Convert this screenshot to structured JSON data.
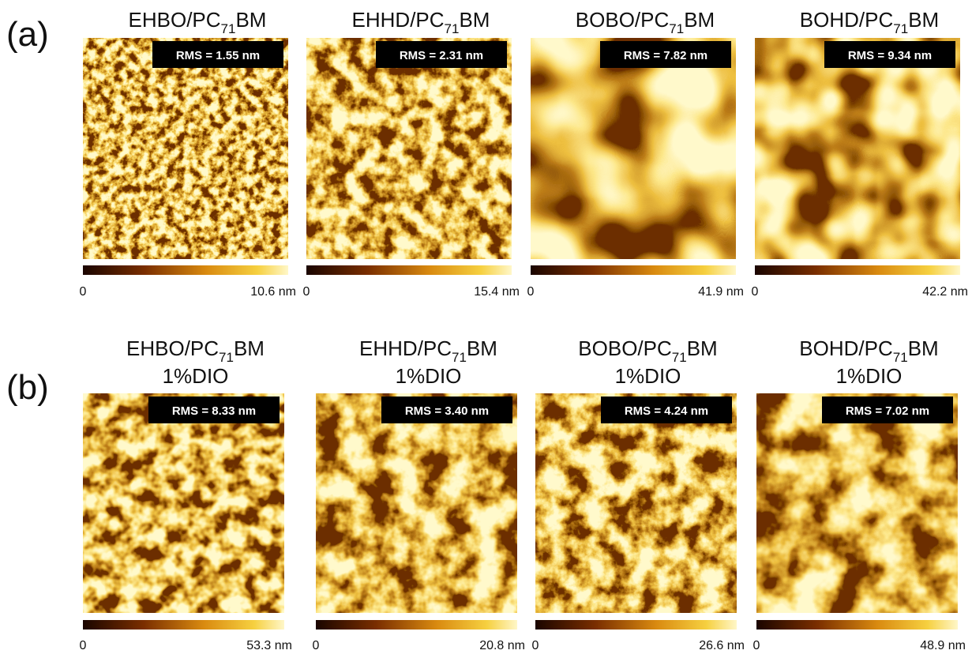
{
  "rows": [
    {
      "label": "(a)",
      "panels": [
        {
          "title": {
            "main": "EHBO/PC",
            "sub": "71",
            "end": "BM"
          },
          "rms": "RMS = 1.55 nm",
          "scale_min": "0",
          "scale_max": "10.6 nm"
        },
        {
          "title": {
            "main": "EHHD/PC",
            "sub": "71",
            "end": "BM"
          },
          "rms": "RMS = 2.31 nm",
          "scale_min": "0",
          "scale_max": "15.4 nm"
        },
        {
          "title": {
            "main": "BOBO/PC",
            "sub": "71",
            "end": "BM"
          },
          "rms": "RMS = 7.82 nm",
          "scale_min": "0",
          "scale_max": "41.9 nm"
        },
        {
          "title": {
            "main": "BOHD/PC",
            "sub": "71",
            "end": "BM"
          },
          "rms": "RMS = 9.34 nm",
          "scale_min": "0",
          "scale_max": "42.2 nm"
        }
      ]
    },
    {
      "label": "(b)",
      "panels": [
        {
          "title": {
            "main": "EHBO/PC",
            "sub": "71",
            "end": "BM",
            "additive": "1%DIO"
          },
          "rms": "RMS = 8.33 nm",
          "scale_min": "0",
          "scale_max": "53.3 nm"
        },
        {
          "title": {
            "main": "EHHD/PC",
            "sub": "71",
            "end": "BM",
            "additive": "1%DIO"
          },
          "rms": "RMS = 3.40 nm",
          "scale_min": "0",
          "scale_max": "20.8 nm"
        },
        {
          "title": {
            "main": "BOBO/PC",
            "sub": "71",
            "end": "BM",
            "additive": "1%DIO"
          },
          "rms": "RMS = 4.24 nm",
          "scale_min": "0",
          "scale_max": "26.6 nm"
        },
        {
          "title": {
            "main": "BOHD/PC",
            "sub": "71",
            "end": "BM",
            "additive": "1%DIO"
          },
          "rms": "RMS = 7.02 nm",
          "scale_min": "0",
          "scale_max": "48.9 nm"
        }
      ]
    }
  ]
}
